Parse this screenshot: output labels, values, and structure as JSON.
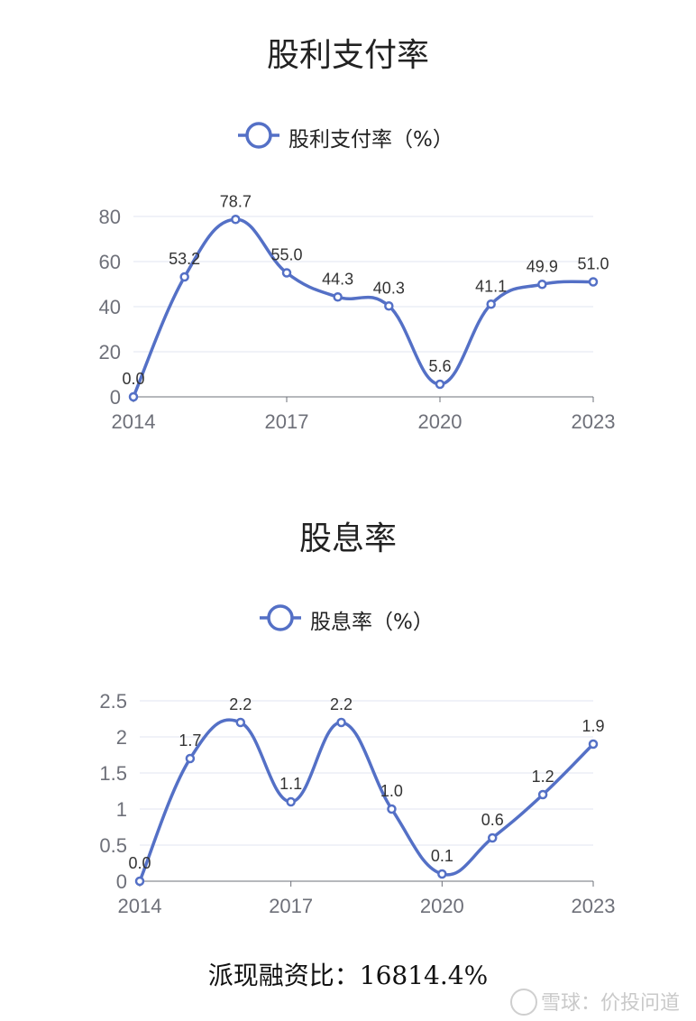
{
  "charts": [
    {
      "title": "股利支付率",
      "legend": "股利支付率（%）"
    },
    {
      "title": "股息率",
      "legend": "股息率（%）"
    }
  ],
  "chart_data": [
    {
      "type": "line",
      "title": "股利支付率",
      "x": [
        "2014",
        "2015",
        "2016",
        "2017",
        "2018",
        "2019",
        "2020",
        "2021",
        "2022",
        "2023"
      ],
      "x_tick_labels": [
        "2014",
        "2017",
        "2020",
        "2023"
      ],
      "series": [
        {
          "name": "股利支付率（%）",
          "values": [
            0.0,
            53.2,
            78.7,
            55.0,
            44.3,
            40.3,
            5.6,
            41.1,
            49.9,
            51.0
          ],
          "labels": [
            "0.0",
            "53.2",
            "78.7",
            "55.0",
            "44.3",
            "40.3",
            "5.6",
            "41.1",
            "49.9",
            "51.0"
          ]
        }
      ],
      "ylim": [
        0,
        80
      ],
      "y_ticks": [
        "0",
        "20",
        "40",
        "60",
        "80"
      ],
      "grid": true,
      "legend_position": "top",
      "line_color": "#5470c6"
    },
    {
      "type": "line",
      "title": "股息率",
      "x": [
        "2014",
        "2015",
        "2016",
        "2017",
        "2018",
        "2019",
        "2020",
        "2021",
        "2022",
        "2023"
      ],
      "x_tick_labels": [
        "2014",
        "2017",
        "2020",
        "2023"
      ],
      "series": [
        {
          "name": "股息率（%）",
          "values": [
            0.0,
            1.7,
            2.2,
            1.1,
            2.2,
            1.0,
            0.1,
            0.6,
            1.2,
            1.9
          ],
          "labels": [
            "0.0",
            "1.7",
            "2.2",
            "1.1",
            "2.2",
            "1.0",
            "0.1",
            "0.6",
            "1.2",
            "1.9"
          ]
        }
      ],
      "ylim": [
        0,
        2.5
      ],
      "y_ticks": [
        "0",
        "0.5",
        "1",
        "1.5",
        "2",
        "2.5"
      ],
      "grid": true,
      "legend_position": "top",
      "line_color": "#5470c6"
    }
  ],
  "footer": {
    "ratio_text": "派现融资比：16814.4%"
  },
  "watermark": {
    "text": "雪球：价投问道"
  }
}
